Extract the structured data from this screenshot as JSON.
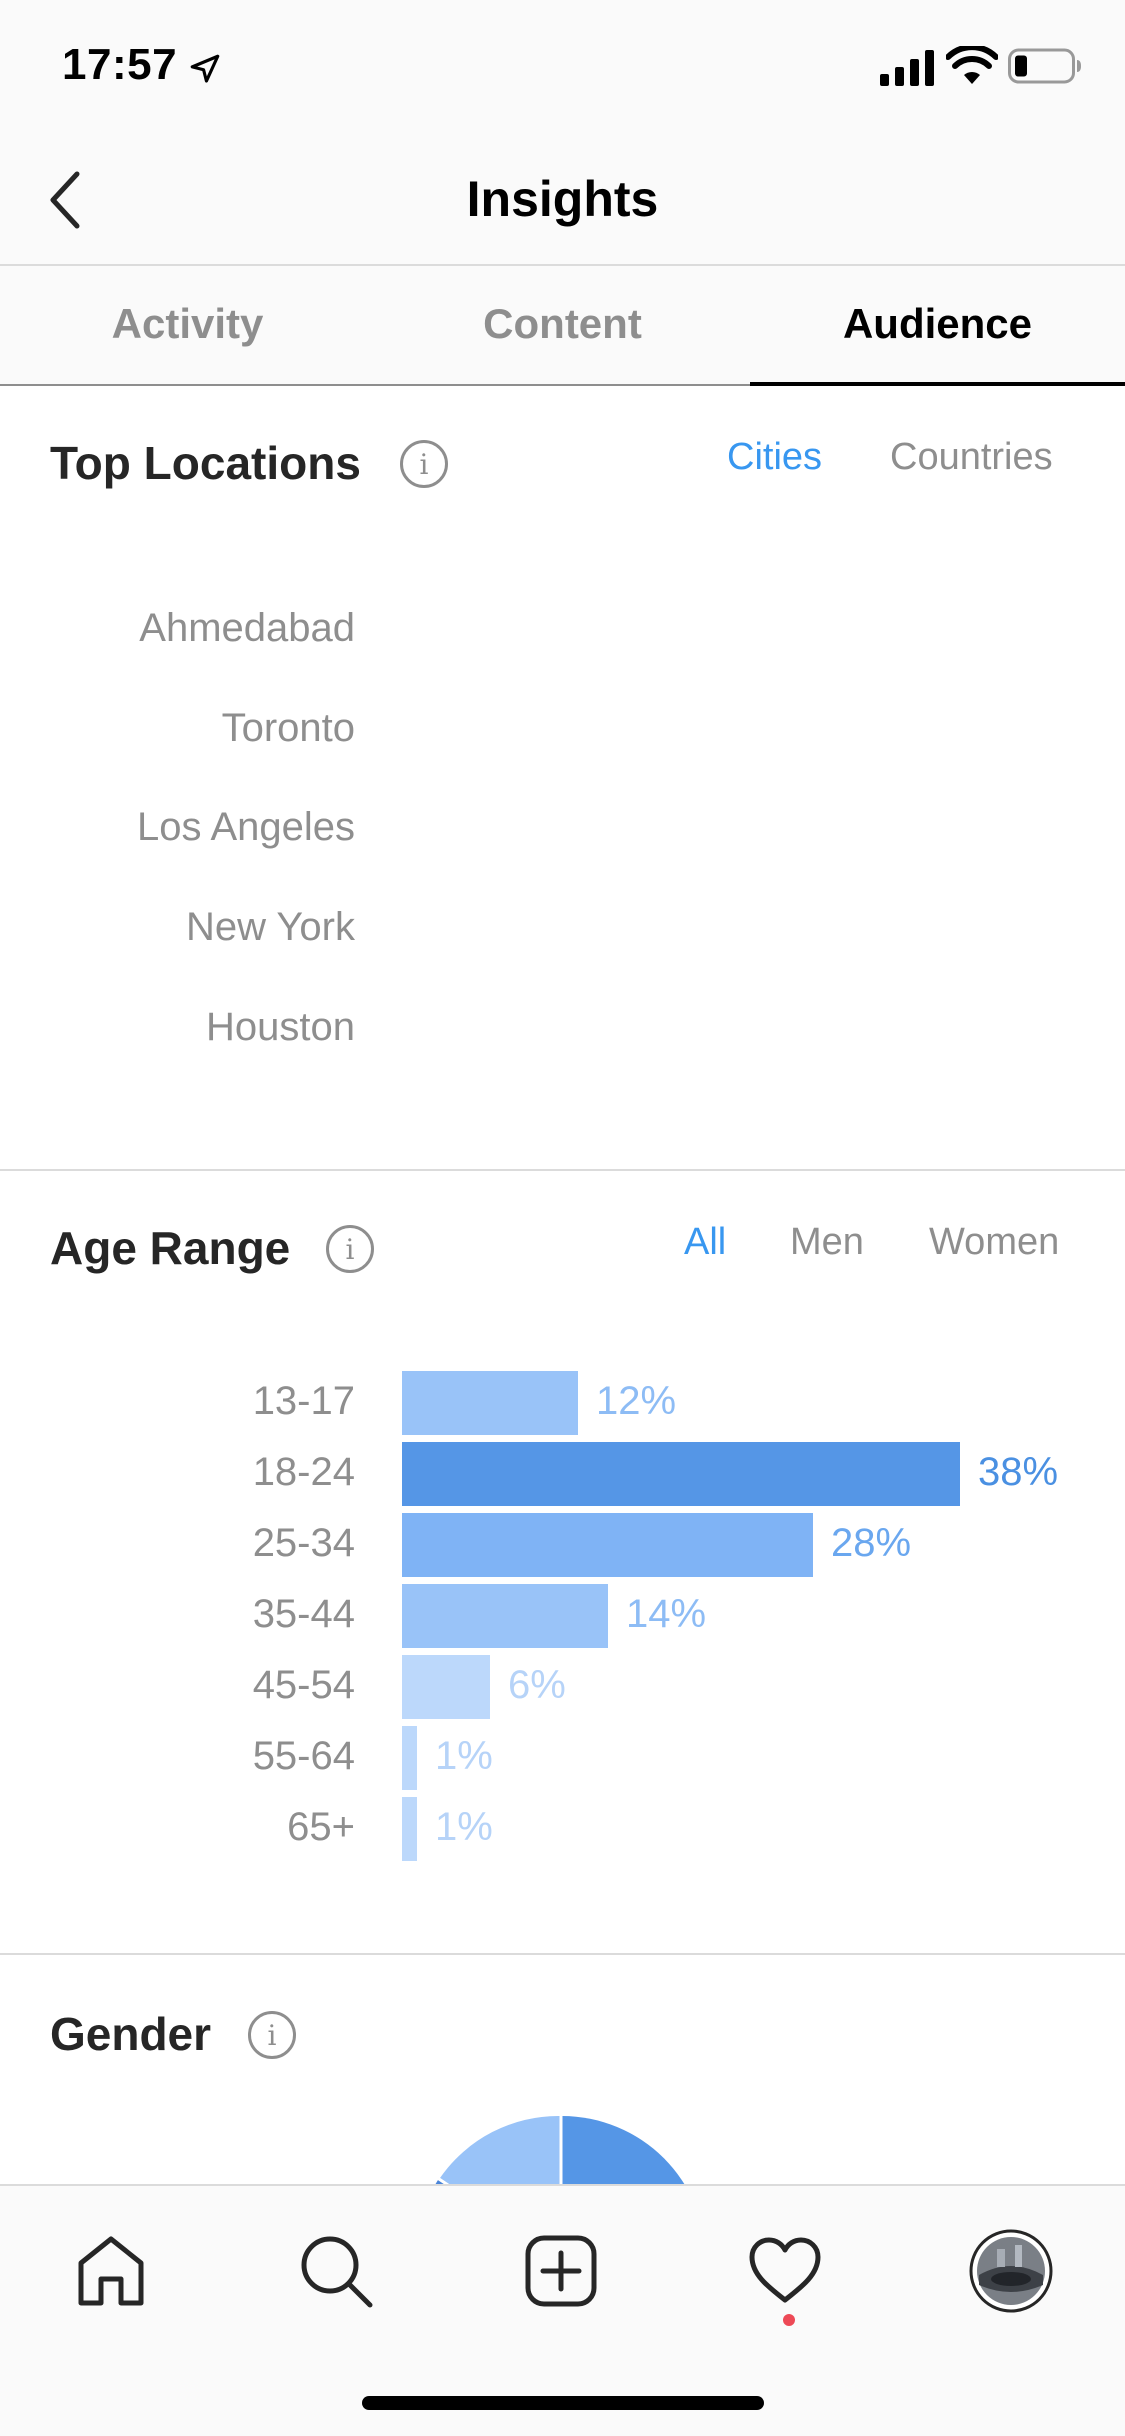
{
  "status_bar": {
    "time": "17:57"
  },
  "header": {
    "title": "Insights"
  },
  "tabs": [
    {
      "label": "Activity",
      "active": false
    },
    {
      "label": "Content",
      "active": false
    },
    {
      "label": "Audience",
      "active": true
    }
  ],
  "top_locations": {
    "title": "Top Locations",
    "segments": [
      {
        "label": "Cities",
        "active": true
      },
      {
        "label": "Countries",
        "active": false
      }
    ],
    "cities": [
      "Ahmedabad",
      "Toronto",
      "Los Angeles",
      "New York",
      "Houston"
    ]
  },
  "age_range": {
    "title": "Age Range",
    "segments": [
      {
        "label": "All",
        "active": true
      },
      {
        "label": "Men",
        "active": false
      },
      {
        "label": "Women",
        "active": false
      }
    ],
    "rows": [
      {
        "range": "13-17",
        "percent_label": "12%",
        "value": 12
      },
      {
        "range": "18-24",
        "percent_label": "38%",
        "value": 38
      },
      {
        "range": "25-34",
        "percent_label": "28%",
        "value": 28
      },
      {
        "range": "35-44",
        "percent_label": "14%",
        "value": 14
      },
      {
        "range": "45-54",
        "percent_label": "6%",
        "value": 6
      },
      {
        "range": "55-64",
        "percent_label": "1%",
        "value": 1
      },
      {
        "range": "65+",
        "percent_label": "1%",
        "value": 1
      }
    ]
  },
  "gender": {
    "title": "Gender"
  },
  "colors": {
    "accent": "#3897f0",
    "bar_dark": "#5596e6",
    "bar_mid": "#7fb3f5",
    "bar_light": "#99c3f8",
    "bar_pale": "#bcd8fb",
    "label_dark": "#4a90e2",
    "label_mid": "#6aa7ef",
    "label_light": "#8dbcf5",
    "label_pale": "#b6d3f8"
  },
  "bottom_nav": [
    "home-icon",
    "search-icon",
    "add-post-icon",
    "activity-heart-icon",
    "profile-avatar"
  ]
}
